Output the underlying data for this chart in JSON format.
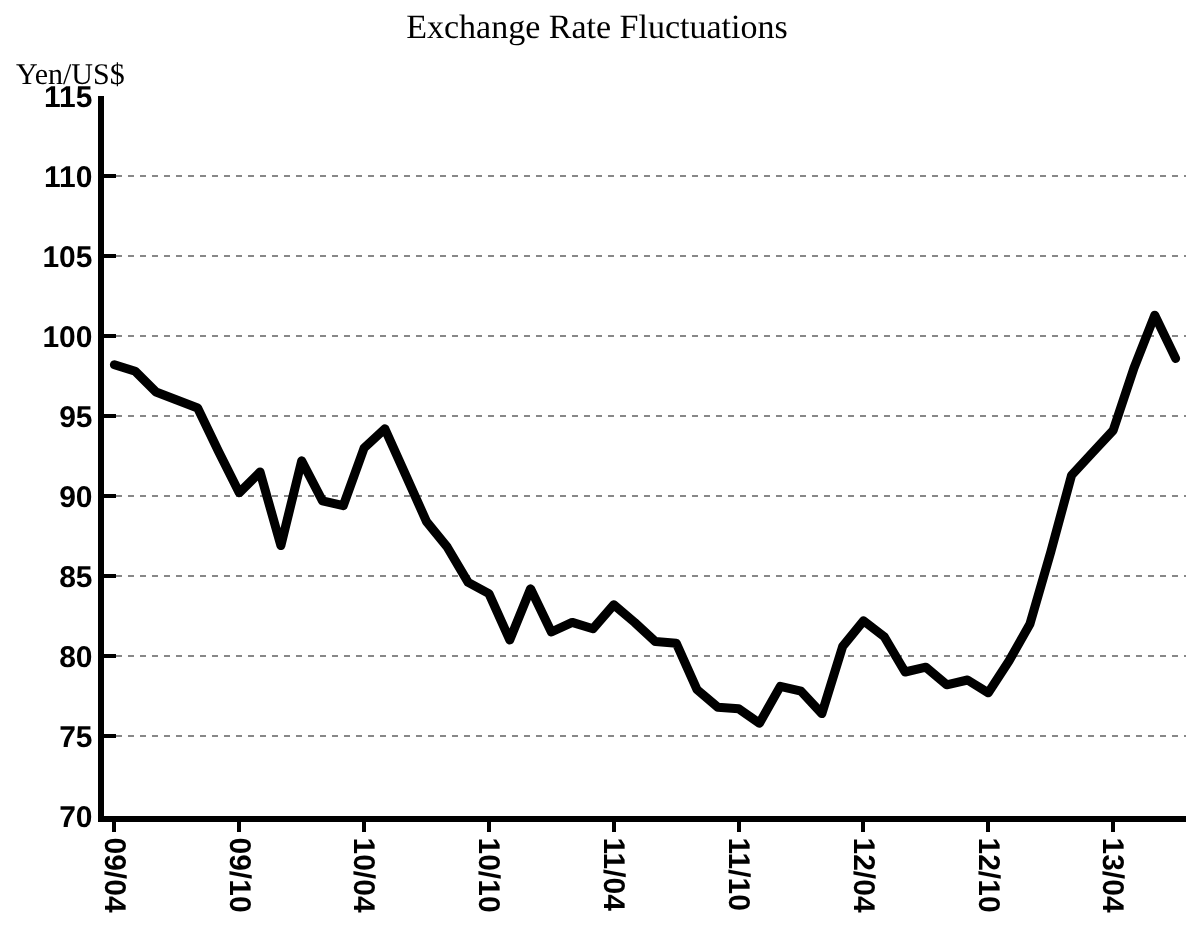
{
  "chart_data": {
    "type": "line",
    "title": "Exchange Rate Fluctuations",
    "ylabel": "Yen/US$",
    "categories": [
      "09/04",
      null,
      null,
      null,
      null,
      null,
      "09/10",
      null,
      null,
      null,
      null,
      null,
      "10/04",
      null,
      null,
      null,
      null,
      null,
      "10/10",
      null,
      null,
      null,
      null,
      null,
      "11/04",
      null,
      null,
      null,
      null,
      null,
      "11/10",
      null,
      null,
      null,
      null,
      null,
      "12/04",
      null,
      null,
      null,
      null,
      null,
      "12/10",
      null,
      null,
      null,
      null,
      null,
      "13/04",
      null,
      null,
      null
    ],
    "series": [
      {
        "color": "#000000",
        "values": [
          98.2,
          97.8,
          96.5,
          96.0,
          95.5,
          92.8,
          90.2,
          91.5,
          86.9,
          92.2,
          89.7,
          89.4,
          93.0,
          94.2,
          91.3,
          88.4,
          86.8,
          84.6,
          83.9,
          81.0,
          84.2,
          81.5,
          82.1,
          81.7,
          83.2,
          82.1,
          80.9,
          80.8,
          77.9,
          76.8,
          76.7,
          75.8,
          78.1,
          77.8,
          76.4,
          80.6,
          82.2,
          81.2,
          79.0,
          79.3,
          78.2,
          78.5,
          77.7,
          79.7,
          82.0,
          86.5,
          91.3,
          92.7,
          94.1,
          98.0,
          101.3,
          98.6
        ]
      }
    ],
    "ylim": [
      70,
      115
    ],
    "yticks": [
      70,
      75,
      80,
      85,
      90,
      95,
      100,
      105,
      110,
      115
    ],
    "grid": "y",
    "marker": "none",
    "line_style": "solid"
  }
}
